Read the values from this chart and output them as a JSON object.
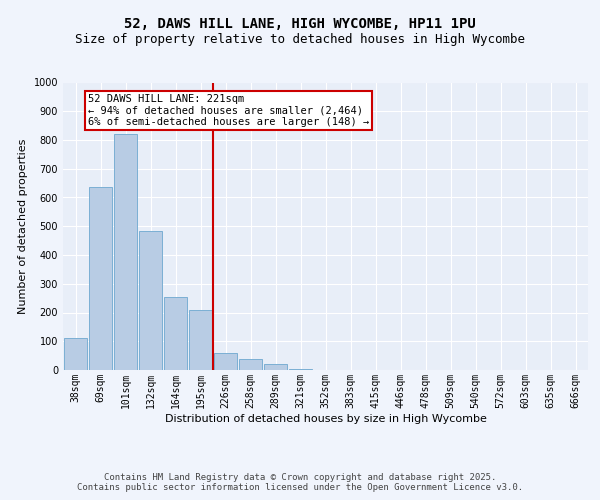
{
  "title_line1": "52, DAWS HILL LANE, HIGH WYCOMBE, HP11 1PU",
  "title_line2": "Size of property relative to detached houses in High Wycombe",
  "xlabel": "Distribution of detached houses by size in High Wycombe",
  "ylabel": "Number of detached properties",
  "bar_labels": [
    "38sqm",
    "69sqm",
    "101sqm",
    "132sqm",
    "164sqm",
    "195sqm",
    "226sqm",
    "258sqm",
    "289sqm",
    "321sqm",
    "352sqm",
    "383sqm",
    "415sqm",
    "446sqm",
    "478sqm",
    "509sqm",
    "540sqm",
    "572sqm",
    "603sqm",
    "635sqm",
    "666sqm"
  ],
  "bar_values": [
    110,
    635,
    820,
    485,
    255,
    210,
    60,
    40,
    20,
    5,
    0,
    0,
    0,
    0,
    0,
    0,
    0,
    0,
    0,
    0,
    0
  ],
  "bar_color": "#b8cce4",
  "bar_edge_color": "#7bafd4",
  "vline_x_idx": 6,
  "vline_color": "#cc0000",
  "annotation_text": "52 DAWS HILL LANE: 221sqm\n← 94% of detached houses are smaller (2,464)\n6% of semi-detached houses are larger (148) →",
  "annotation_box_color": "#ffffff",
  "annotation_box_edge": "#cc0000",
  "ylim": [
    0,
    1000
  ],
  "yticks": [
    0,
    100,
    200,
    300,
    400,
    500,
    600,
    700,
    800,
    900,
    1000
  ],
  "bg_color": "#e8eef8",
  "fig_bg_color": "#f0f4fc",
  "grid_color": "#ffffff",
  "footer_text": "Contains HM Land Registry data © Crown copyright and database right 2025.\nContains public sector information licensed under the Open Government Licence v3.0.",
  "title_fontsize": 10,
  "subtitle_fontsize": 9,
  "axis_label_fontsize": 8,
  "tick_fontsize": 7,
  "annotation_fontsize": 7.5,
  "footer_fontsize": 6.5
}
